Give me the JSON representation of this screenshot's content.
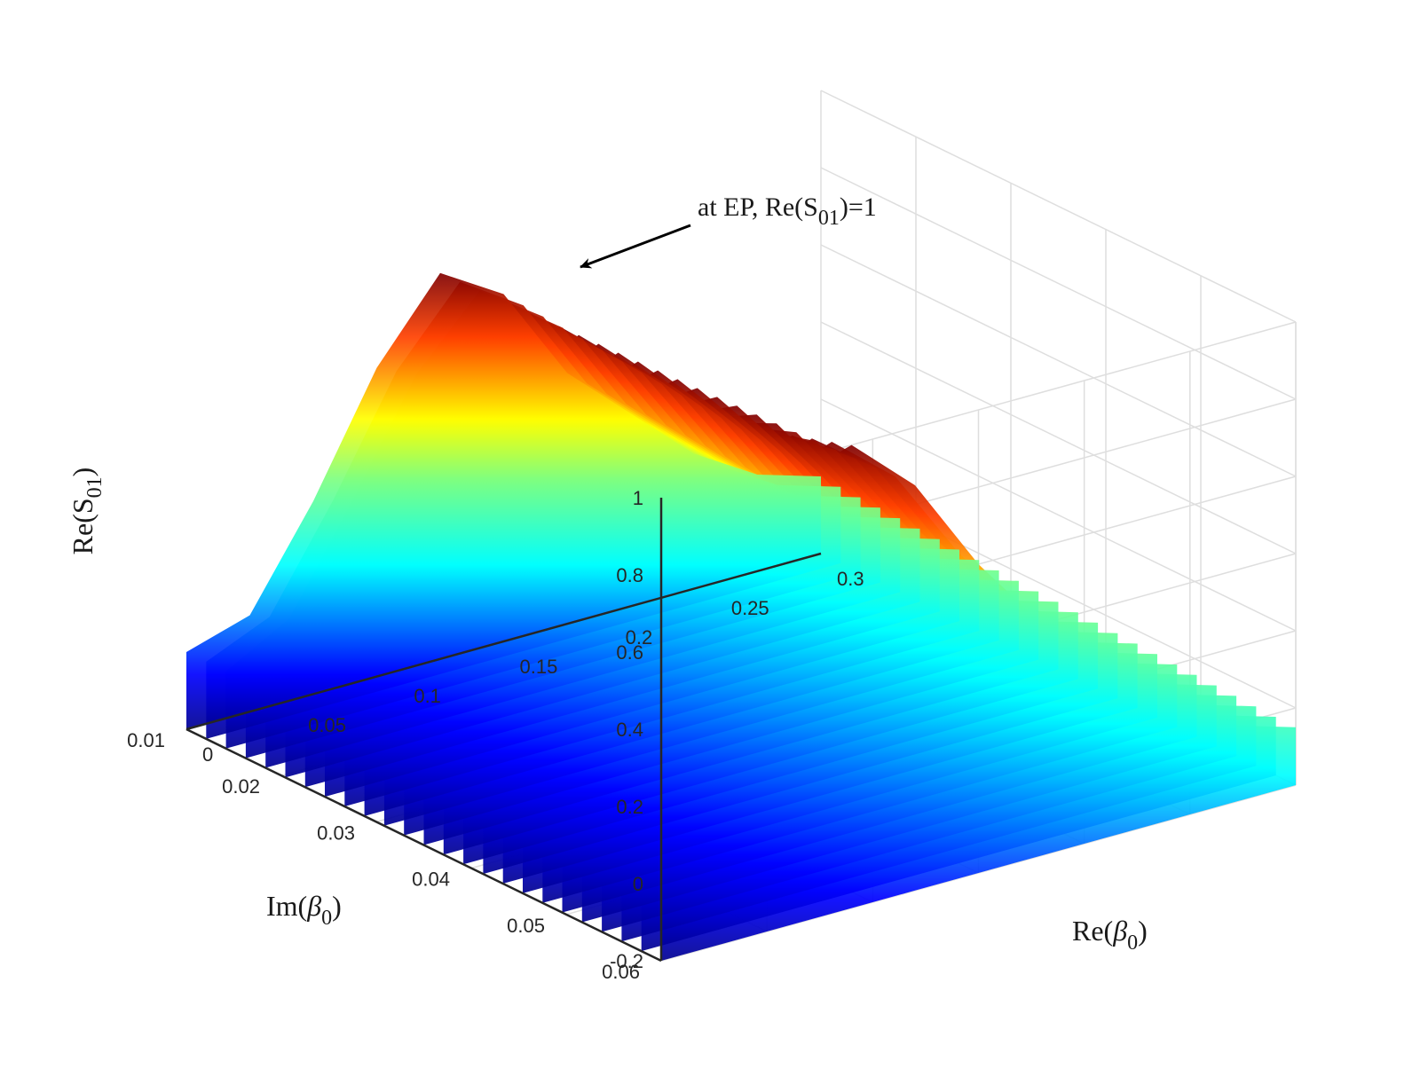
{
  "chart_data": {
    "type": "surface",
    "colormap": "jet",
    "grid": true,
    "box": "back panes with light gray grid",
    "axes": {
      "x": {
        "label_main": "Re(",
        "label_symbol": "β",
        "label_sub": "0",
        "label_end": ")",
        "range": [
          0,
          0.3
        ],
        "ticks": [
          "0",
          "0.05",
          "0.1",
          "0.15",
          "0.2",
          "0.25",
          "0.3"
        ]
      },
      "y": {
        "label_main": "Im(",
        "label_symbol": "β",
        "label_sub": "0",
        "label_end": ")",
        "range": [
          0.01,
          0.06
        ],
        "ticks": [
          "0.01",
          "0.02",
          "0.03",
          "0.04",
          "0.05",
          "0.06"
        ]
      },
      "z": {
        "label_main": "Re(S",
        "label_sub": "01",
        "label_end": ")",
        "range": [
          -0.2,
          1
        ],
        "ticks": [
          "-0.2",
          "0",
          "0.2",
          "0.4",
          "0.6",
          "0.8",
          "1"
        ]
      }
    },
    "annotation": {
      "text_main": "at EP, Re(S",
      "text_sub": "01",
      "text_end": ")=1",
      "point": {
        "re_beta0": 0.0,
        "im_beta0": 0.06,
        "value": 1.0
      }
    },
    "surface_profile": {
      "description_values": "Re(S01) along Re(beta0) at Im(beta0)=0.06 (back edge) and Im(beta0)=0.01 (front edge)",
      "re_beta0": [
        0,
        0.03,
        0.06,
        0.09,
        0.12,
        0.15,
        0.18,
        0.21,
        0.24,
        0.27,
        0.3
      ],
      "at_im_0.06": [
        0.0,
        0.55,
        0.95,
        1.0,
        0.85,
        0.6,
        0.4,
        0.25,
        0.1,
        0.0,
        -0.05
      ],
      "at_im_0.01": [
        0.0,
        0.05,
        0.3,
        0.6,
        0.8,
        0.7,
        0.45,
        0.3,
        0.15,
        0.05,
        0.0
      ]
    }
  }
}
